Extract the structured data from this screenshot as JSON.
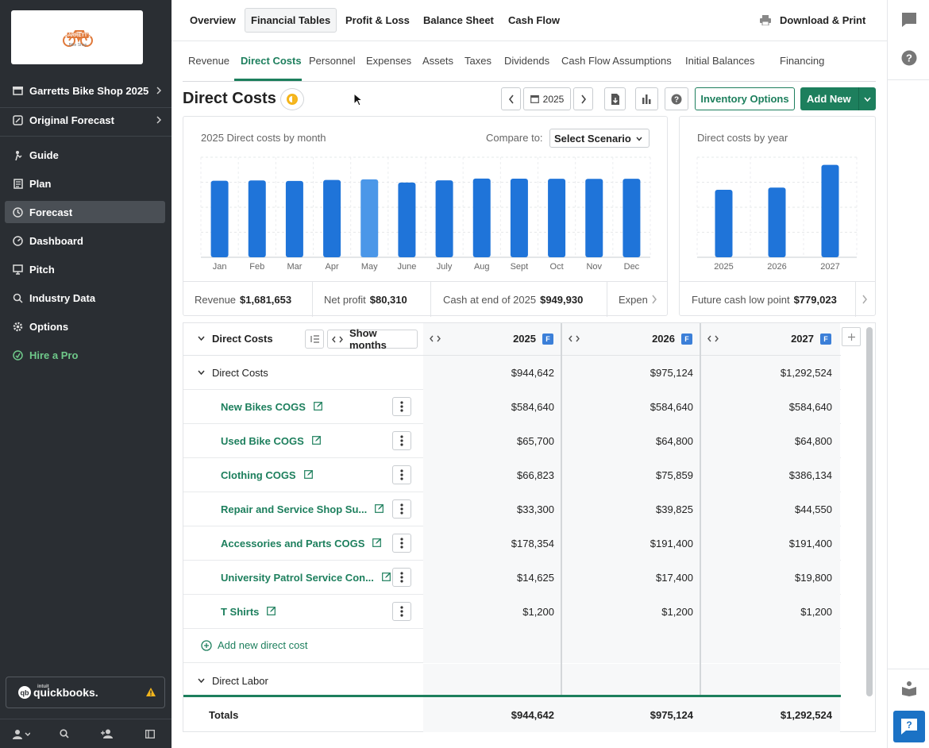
{
  "sidebar": {
    "logo": {
      "text": "GARRETT'S",
      "subtext": "Bike Shop"
    },
    "plan_name": "Garretts Bike Shop 2025",
    "scenario": "Original Forecast",
    "items": [
      {
        "label": "Guide",
        "icon": "guide-icon"
      },
      {
        "label": "Plan",
        "icon": "plan-icon"
      },
      {
        "label": "Forecast",
        "icon": "forecast-icon",
        "active": true
      },
      {
        "label": "Dashboard",
        "icon": "dashboard-icon"
      },
      {
        "label": "Pitch",
        "icon": "pitch-icon"
      },
      {
        "label": "Industry Data",
        "icon": "industry-data-icon"
      },
      {
        "label": "Options",
        "icon": "gear-icon"
      },
      {
        "label": "Hire a Pro",
        "icon": "hire-pro-icon"
      }
    ],
    "quickbooks": {
      "brand": "intuit",
      "label": "quickbooks."
    }
  },
  "topnav": {
    "items": [
      "Overview",
      "Financial Tables",
      "Profit & Loss",
      "Balance Sheet",
      "Cash Flow"
    ],
    "selected": "Financial Tables",
    "download_label": "Download & Print"
  },
  "subnav": {
    "tabs": [
      "Revenue",
      "Direct Costs",
      "Personnel",
      "Expenses",
      "Assets",
      "Taxes",
      "Dividends",
      "Cash Flow Assumptions",
      "Initial Balances",
      "Financing"
    ],
    "selected": "Direct Costs"
  },
  "page": {
    "title": "Direct Costs",
    "year": "2025",
    "inventory_button": "Inventory Options",
    "add_new_button": "Add New"
  },
  "monthly_chart": {
    "title": "2025 Direct costs by month",
    "compare_label": "Compare to:",
    "compare_value": "Select Scenario"
  },
  "yearly_chart": {
    "title": "Direct costs by year"
  },
  "chart_data": [
    {
      "type": "bar",
      "title": "2025 Direct costs by month",
      "categories": [
        "Jan",
        "Feb",
        "Mar",
        "Apr",
        "May",
        "June",
        "July",
        "Aug",
        "Sept",
        "Oct",
        "Nov",
        "Dec"
      ],
      "values": [
        76500,
        76800,
        76300,
        77300,
        77900,
        74700,
        76900,
        78700,
        78600,
        78500,
        78400,
        78500
      ],
      "highlight_index": 4,
      "ylim": [
        0,
        100000
      ],
      "grid": true,
      "colors": {
        "bar": "#1f74d9",
        "highlight": "#4b97e8"
      }
    },
    {
      "type": "bar",
      "title": "Direct costs by year",
      "categories": [
        "2025",
        "2026",
        "2027"
      ],
      "values": [
        944642,
        975124,
        1292524
      ],
      "ylim": [
        0,
        1400000
      ],
      "grid": true,
      "colors": {
        "bar": "#1f74d9"
      }
    }
  ],
  "stats": {
    "revenue_label": "Revenue",
    "revenue_value": "$1,681,653",
    "net_profit_label": "Net profit",
    "net_profit_value": "$80,310",
    "cash_label": "Cash at end of 2025",
    "cash_value": "$949,930",
    "expenses_label": "Expen",
    "future_cash_label": "Future cash low point",
    "future_cash_value": "$779,023"
  },
  "table": {
    "header_label": "Direct Costs",
    "show_months_label": "Show months",
    "years": [
      "2025",
      "2026",
      "2027"
    ],
    "forecast_badge": "F",
    "group": {
      "label": "Direct Costs",
      "values": [
        "$944,642",
        "$975,124",
        "$1,292,524"
      ]
    },
    "rows": [
      {
        "label": "New Bikes COGS",
        "values": [
          "$584,640",
          "$584,640",
          "$584,640"
        ]
      },
      {
        "label": "Used Bike COGS",
        "values": [
          "$65,700",
          "$64,800",
          "$64,800"
        ]
      },
      {
        "label": "Clothing COGS",
        "values": [
          "$66,823",
          "$75,859",
          "$386,134"
        ]
      },
      {
        "label": "Repair and Service Shop Su...",
        "values": [
          "$33,300",
          "$39,825",
          "$44,550"
        ]
      },
      {
        "label": "Accessories and Parts COGS",
        "values": [
          "$178,354",
          "$191,400",
          "$191,400"
        ]
      },
      {
        "label": "University Patrol Service Con...",
        "values": [
          "$14,625",
          "$17,400",
          "$19,800"
        ]
      },
      {
        "label": "T Shirts",
        "values": [
          "$1,200",
          "$1,200",
          "$1,200"
        ]
      }
    ],
    "add_label": "Add new direct cost",
    "labor_label": "Direct Labor",
    "totals": {
      "label": "Totals",
      "values": [
        "$944,642",
        "$975,124",
        "$1,292,524"
      ]
    }
  }
}
